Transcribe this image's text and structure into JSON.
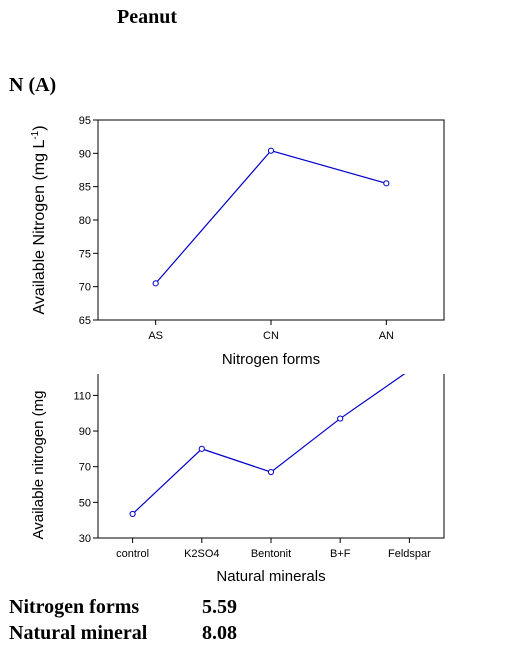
{
  "figure": {
    "title": "Peanut",
    "panel_label": "N (A)",
    "stats": [
      {
        "label": "Nitrogen forms",
        "value": "5.59"
      },
      {
        "label": "Natural mineral",
        "value": "8.08"
      }
    ]
  },
  "chart_data": [
    {
      "type": "line",
      "categories": [
        "AS",
        "CN",
        "AN"
      ],
      "series": [
        {
          "values": [
            70.5,
            90.4,
            85.5
          ]
        }
      ],
      "xlabel": "Nitrogen forms",
      "ylabel": "Available Nitrogen (mg L",
      "ylabel_superscript": "-1",
      "ylabel_close": ")",
      "ylim": [
        65,
        95
      ],
      "yticks": [
        65,
        70,
        75,
        80,
        85,
        90,
        95
      ],
      "line_color": "#0000cc",
      "marker": "open-circle"
    },
    {
      "type": "line",
      "categories": [
        "control",
        "K2SO4",
        "Bentonit",
        "B+F",
        "Feldspar"
      ],
      "series": [
        {
          "values": [
            43.5,
            80,
            67,
            97,
            124
          ]
        }
      ],
      "xlabel": "Natural minerals",
      "ylabel": "Available nitrogen (mg",
      "ylim": [
        30,
        122
      ],
      "yticks": [
        30,
        50,
        70,
        90,
        110
      ],
      "line_color": "#0000cc",
      "marker": "open-circle"
    }
  ]
}
